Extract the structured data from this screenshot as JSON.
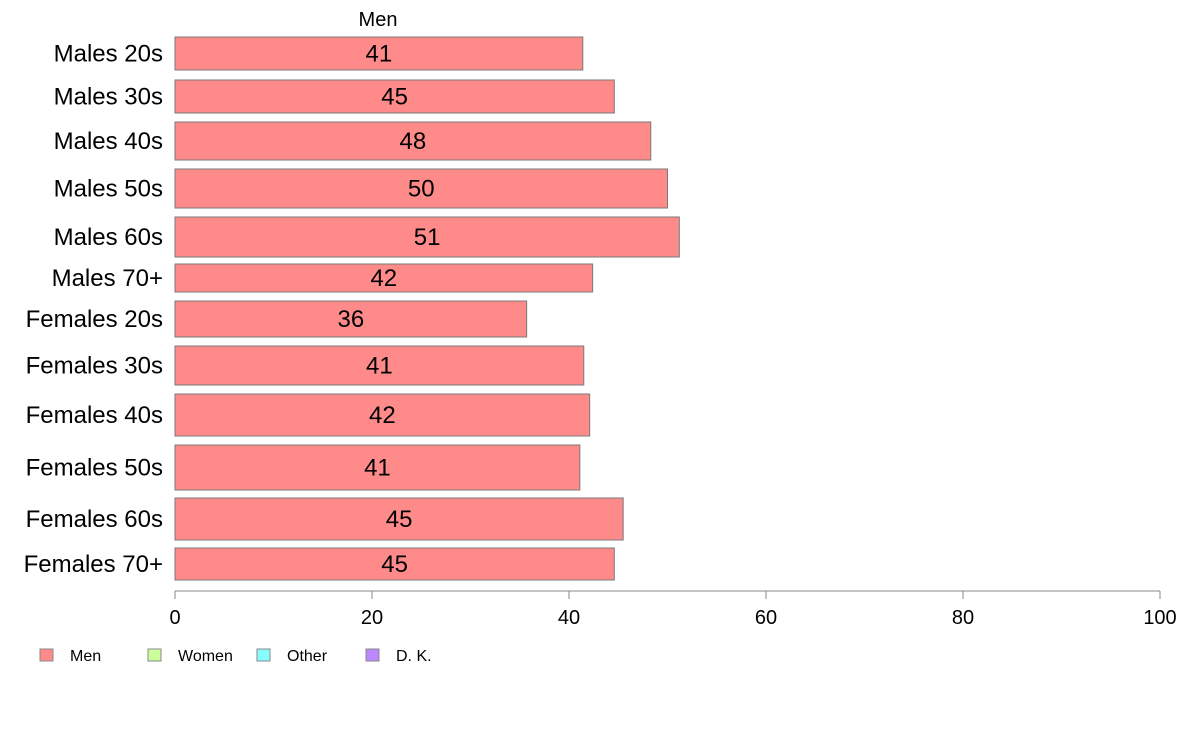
{
  "chart_data": {
    "type": "bar",
    "orientation": "horizontal",
    "series_title": "Men",
    "categories": [
      "Males 20s",
      "Males 30s",
      "Males 40s",
      "Males 50s",
      "Males 60s",
      "Males 70+",
      "Females 20s",
      "Females 30s",
      "Females 40s",
      "Females 50s",
      "Females 60s",
      "Females 70+"
    ],
    "series": [
      {
        "name": "Men",
        "color": "#FF8A8A",
        "values": [
          41.4,
          44.6,
          48.3,
          50.0,
          51.2,
          42.4,
          35.7,
          41.5,
          42.1,
          41.1,
          45.5,
          44.6
        ],
        "labels": [
          "41",
          "45",
          "48",
          "50",
          "51",
          "42",
          "36",
          "41",
          "42",
          "41",
          "45",
          "45"
        ]
      }
    ],
    "xlim": [
      0,
      100
    ],
    "xticks": [
      "0",
      "20",
      "40",
      "60",
      "80",
      "100"
    ],
    "grid": false,
    "legend": {
      "placement": "bottom-left",
      "items": [
        {
          "label": "Men",
          "color": "#FF8A8A"
        },
        {
          "label": "Women",
          "color": "#CCFF99"
        },
        {
          "label": "Other",
          "color": "#88FFFF"
        },
        {
          "label": "D. K.",
          "color": "#BB88FF"
        }
      ]
    }
  }
}
